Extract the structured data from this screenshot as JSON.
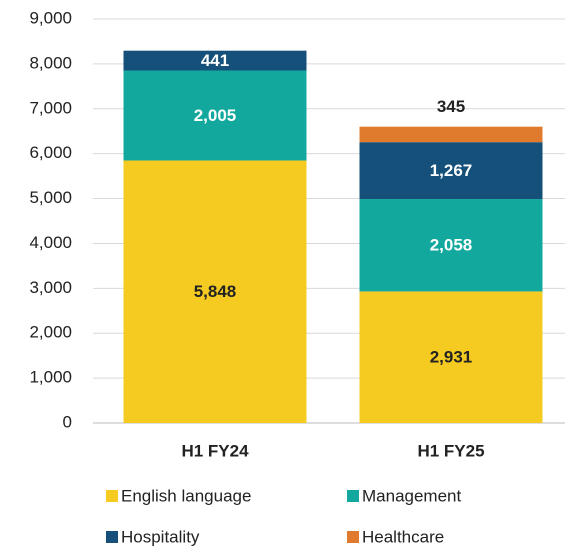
{
  "chart_data": {
    "type": "stacked_bar",
    "categories": [
      "H1 FY24",
      "H1 FY25"
    ],
    "series": [
      {
        "name": "English language",
        "color": "#f5cb22",
        "label_color": "#222222",
        "values": [
          5848,
          2931
        ],
        "value_labels": [
          "5,848",
          "2,931"
        ]
      },
      {
        "name": "Management",
        "color": "#12a89d",
        "label_color": "#ffffff",
        "values": [
          2005,
          2058
        ],
        "value_labels": [
          "2,005",
          "2,058"
        ]
      },
      {
        "name": "Hospitality",
        "color": "#14507a",
        "label_color": "#ffffff",
        "values": [
          441,
          1267
        ],
        "value_labels": [
          "441",
          "1,267"
        ]
      },
      {
        "name": "Healthcare",
        "color": "#e07b2e",
        "label_color": "#222222",
        "values": [
          null,
          345
        ],
        "value_labels": [
          null,
          "345"
        ]
      }
    ],
    "ylim": [
      0,
      9000
    ],
    "yticks": [
      0,
      {
        "value": 1000,
        "label": "1,000"
      },
      {
        "value": 2000,
        "label": "2,000"
      },
      {
        "value": 3000,
        "label": "3,000"
      },
      {
        "value": 4000,
        "label": "4,000"
      },
      {
        "value": 5000,
        "label": "5,000"
      },
      {
        "value": 6000,
        "label": "6,000"
      },
      {
        "value": 7000,
        "label": "7,000"
      },
      {
        "value": 8000,
        "label": "8,000"
      },
      {
        "value": 9000,
        "label": "9,000"
      }
    ],
    "grid": true
  }
}
